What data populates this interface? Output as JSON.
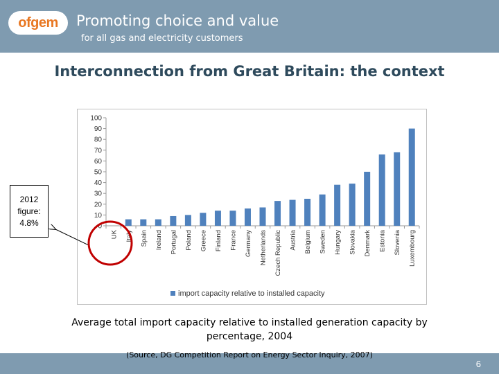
{
  "header": {
    "logo_text": "ofgem",
    "tagline_line1": "Promoting choice and value",
    "tagline_line2": "for all gas and electricity customers"
  },
  "slide": {
    "title": "Interconnection from Great Britain: the context",
    "callout": [
      "2012",
      "figure:",
      "4.8%"
    ],
    "caption": "Average total import capacity relative to installed generation capacity by percentage, 2004",
    "source": "(Source, DG Competition Report on Energy Sector Inquiry, 2007)",
    "page_number": "6"
  },
  "colors": {
    "header_bg": "#7f9bb0",
    "bar": "#4f81bd",
    "title": "#2e4a5c",
    "highlight_circle": "#c00000"
  },
  "chart_data": {
    "type": "bar",
    "categories": [
      "UK",
      "Italy",
      "Spain",
      "Ireland",
      "Portugal",
      "Poland",
      "Greece",
      "Finland",
      "France",
      "Germany",
      "Netherlands",
      "Czech Republic",
      "Austria",
      "Belgium",
      "Sweden",
      "Hungary",
      "Slovakia",
      "Denmark",
      "Estonia",
      "Slovenia",
      "Luxembourg"
    ],
    "series": [
      {
        "name": "import capacity relative to installed capacity",
        "values": [
          0,
          6,
          6,
          6,
          9,
          10,
          12,
          14,
          14,
          16,
          17,
          23,
          24,
          25,
          29,
          38,
          39,
          50,
          66,
          68,
          90
        ]
      }
    ],
    "yticks": [
      "0",
      "10",
      "20",
      "30",
      "40",
      "50",
      "60",
      "70",
      "80",
      "90",
      "100"
    ],
    "ylim": [
      0,
      100
    ],
    "grid": false,
    "legend_position": "bottom"
  }
}
